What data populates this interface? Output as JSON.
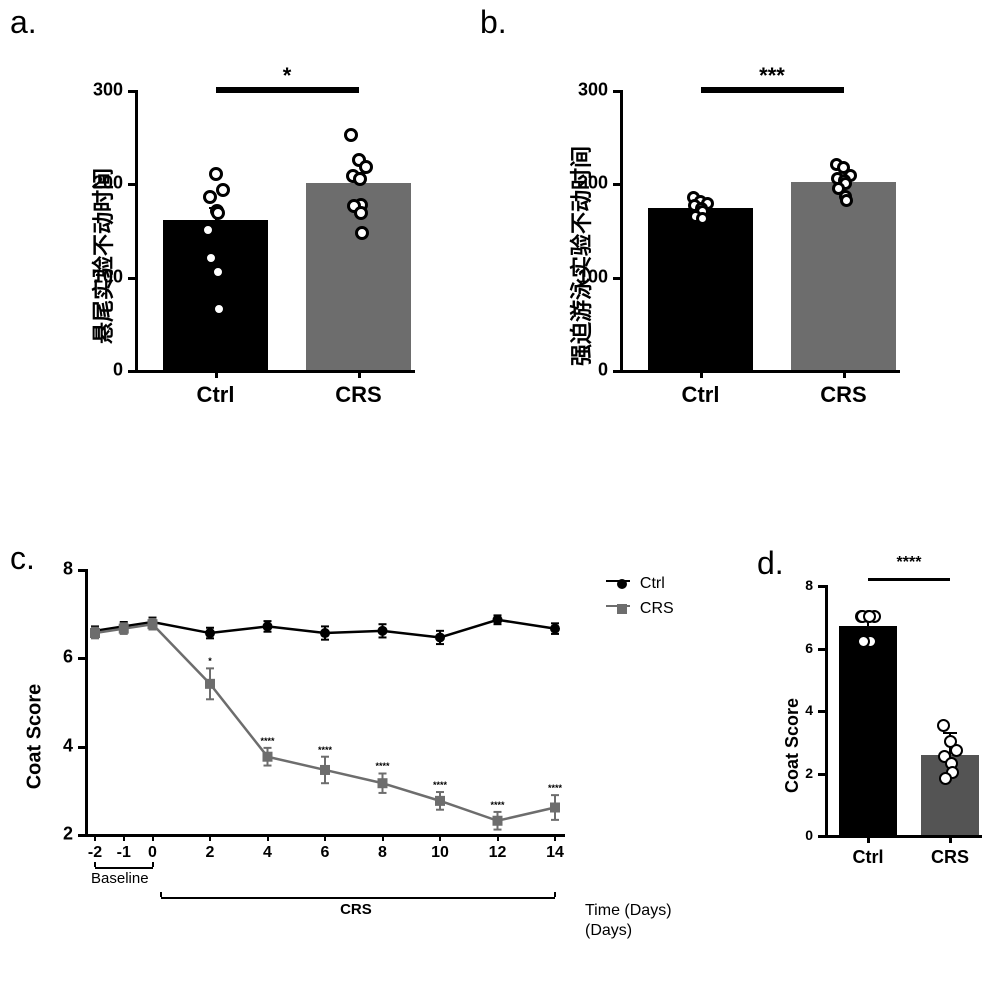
{
  "panel_a": {
    "label": "a.",
    "type": "bar_scatter",
    "ylabel": "悬尾实验不动时间",
    "ylim": [
      0,
      300
    ],
    "yticks": [
      0,
      100,
      200,
      300
    ],
    "categories": [
      "Ctrl",
      "CRS"
    ],
    "bars": [
      {
        "value": 161,
        "err": 14,
        "fill": "#000000"
      },
      {
        "value": 200,
        "err": 12,
        "fill": "#6d6d6d"
      }
    ],
    "points": [
      [
        150,
        210,
        193,
        185,
        170,
        168,
        120,
        105,
        65
      ],
      [
        252,
        225,
        218,
        208,
        205,
        177,
        176,
        168,
        147
      ]
    ],
    "point_style": {
      "diameter": 14,
      "stroke": "#000000",
      "fill": "#ffffff",
      "stroke_width": 3
    },
    "sig": "*",
    "label_fontsize": 22,
    "tick_fontsize": 18
  },
  "panel_b": {
    "label": "b.",
    "type": "bar_scatter",
    "ylabel": "强迫游泳实验不动时间",
    "ylim": [
      0,
      300
    ],
    "yticks": [
      0,
      100,
      200,
      300
    ],
    "categories": [
      "Ctrl",
      "CRS"
    ],
    "bars": [
      {
        "value": 174,
        "err": 6,
        "fill": "#000000"
      },
      {
        "value": 201,
        "err": 6,
        "fill": "#6d6d6d"
      }
    ],
    "points": [
      [
        185,
        181,
        178,
        176,
        173,
        170,
        164,
        162
      ],
      [
        220,
        217,
        208,
        205,
        203,
        200,
        195,
        186,
        182
      ]
    ],
    "point_style": {
      "diameter": 13,
      "stroke": "#000000",
      "fill": "#ffffff",
      "stroke_width": 3
    },
    "sig": "***",
    "label_fontsize": 22,
    "tick_fontsize": 18
  },
  "panel_c": {
    "label": "c.",
    "type": "line",
    "ylabel": "Coat Score",
    "ylim": [
      2,
      8
    ],
    "yticks": [
      2,
      4,
      6,
      8
    ],
    "xvals": [
      -2,
      -1,
      0,
      2,
      4,
      6,
      8,
      10,
      12,
      14
    ],
    "xlabel_right": "Time (Days)",
    "baseline_label": "Baseline",
    "crs_label": "CRS",
    "series": [
      {
        "name": "Ctrl",
        "color": "#000000",
        "marker": "circle",
        "y": [
          6.6,
          6.7,
          6.8,
          6.55,
          6.7,
          6.55,
          6.6,
          6.45,
          6.85,
          6.65
        ],
        "err": [
          0.1,
          0.1,
          0.1,
          0.12,
          0.12,
          0.15,
          0.15,
          0.15,
          0.1,
          0.12
        ]
      },
      {
        "name": "CRS",
        "color": "#6d6d6d",
        "marker": "square",
        "y": [
          6.55,
          6.65,
          6.75,
          5.4,
          3.75,
          3.45,
          3.15,
          2.75,
          2.3,
          2.6
        ],
        "err": [
          0.12,
          0.12,
          0.12,
          0.35,
          0.2,
          0.3,
          0.22,
          0.2,
          0.2,
          0.28
        ]
      }
    ],
    "sig_per_point": [
      "",
      "",
      "",
      "*",
      "****",
      "****",
      "****",
      "****",
      "****",
      "****"
    ],
    "legend": [
      "Ctrl",
      "CRS"
    ]
  },
  "panel_d": {
    "label": "d.",
    "type": "bar_scatter",
    "ylabel": "Coat Score",
    "ylim": [
      0,
      8
    ],
    "yticks": [
      0,
      2,
      4,
      6,
      8
    ],
    "categories": [
      "Ctrl",
      "CRS"
    ],
    "bars": [
      {
        "value": 6.7,
        "err": 0.25,
        "fill": "#000000"
      },
      {
        "value": 2.55,
        "err": 0.75,
        "fill": "#545454"
      }
    ],
    "points": [
      [
        7,
        7,
        7,
        7,
        7,
        6.2,
        6.2
      ],
      [
        3.5,
        3.0,
        2.7,
        2.5,
        2.3,
        2.0,
        1.8
      ]
    ],
    "point_style": {
      "diameter": 13,
      "stroke": "#000000",
      "fill": "#ffffff",
      "stroke_width": 2.5
    },
    "sig": "****",
    "label_fontsize": 18,
    "tick_fontsize": 14
  },
  "colors": {
    "bg": "#ffffff",
    "axis": "#000000"
  }
}
